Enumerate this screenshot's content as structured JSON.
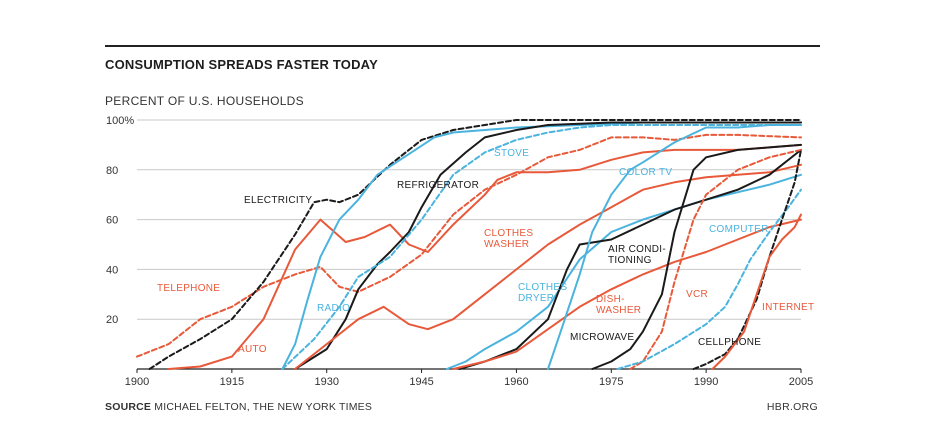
{
  "header": {
    "title": "CONSUMPTION SPREADS FASTER TODAY",
    "subtitle": "PERCENT OF U.S. HOUSEHOLDS"
  },
  "footer": {
    "source_label": "SOURCE",
    "source_text": "MICHAEL FELTON, THE NEW YORK TIMES",
    "credit": "HBR.ORG"
  },
  "colors": {
    "orange": "#e8593a",
    "blue": "#4ab3de",
    "black": "#1a1a1a"
  },
  "chart_data": {
    "type": "line",
    "title": "CONSUMPTION SPREADS FASTER TODAY",
    "ylabel": "PERCENT OF U.S. HOUSEHOLDS",
    "xlabel": "",
    "xlim": [
      1900,
      2005
    ],
    "ylim": [
      0,
      100
    ],
    "x_ticks": [
      1900,
      1915,
      1930,
      1945,
      1960,
      1975,
      1990,
      2005
    ],
    "y_ticks": [
      20,
      40,
      60,
      80,
      100
    ],
    "y_tick_labels": [
      "20",
      "40",
      "60",
      "80",
      "100%"
    ],
    "series": [
      {
        "name": "TELEPHONE",
        "label": "TELEPHONE",
        "color": "orange",
        "dashed": true,
        "points": [
          [
            1900,
            5
          ],
          [
            1905,
            10
          ],
          [
            1910,
            20
          ],
          [
            1915,
            25
          ],
          [
            1920,
            33
          ],
          [
            1925,
            38
          ],
          [
            1929,
            41
          ],
          [
            1932,
            33
          ],
          [
            1935,
            31
          ],
          [
            1940,
            37
          ],
          [
            1945,
            46
          ],
          [
            1950,
            62
          ],
          [
            1955,
            72
          ],
          [
            1960,
            78
          ],
          [
            1965,
            85
          ],
          [
            1970,
            88
          ],
          [
            1975,
            93
          ],
          [
            1980,
            93
          ],
          [
            1985,
            92
          ],
          [
            1990,
            94
          ],
          [
            1995,
            94
          ],
          [
            2005,
            93
          ]
        ]
      },
      {
        "name": "ELECTRICITY",
        "label": "ELECTRICITY",
        "color": "black",
        "dashed": true,
        "points": [
          [
            1902,
            0
          ],
          [
            1905,
            5
          ],
          [
            1910,
            12
          ],
          [
            1915,
            20
          ],
          [
            1920,
            35
          ],
          [
            1925,
            54
          ],
          [
            1928,
            67
          ],
          [
            1930,
            68
          ],
          [
            1932,
            67
          ],
          [
            1935,
            70
          ],
          [
            1940,
            82
          ],
          [
            1945,
            92
          ],
          [
            1950,
            96
          ],
          [
            1955,
            98
          ],
          [
            1960,
            100
          ],
          [
            2005,
            100
          ]
        ]
      },
      {
        "name": "AUTO",
        "label": "AUTO",
        "color": "orange",
        "dashed": false,
        "points": [
          [
            1905,
            0
          ],
          [
            1910,
            1
          ],
          [
            1915,
            5
          ],
          [
            1920,
            20
          ],
          [
            1925,
            48
          ],
          [
            1929,
            60
          ],
          [
            1933,
            51
          ],
          [
            1936,
            53
          ],
          [
            1940,
            58
          ],
          [
            1943,
            50
          ],
          [
            1946,
            47
          ],
          [
            1950,
            58
          ],
          [
            1955,
            70
          ],
          [
            1957,
            76
          ],
          [
            1960,
            79
          ],
          [
            1965,
            79
          ],
          [
            1970,
            80
          ],
          [
            1975,
            84
          ],
          [
            1980,
            87
          ],
          [
            1985,
            88
          ],
          [
            1990,
            88
          ],
          [
            1995,
            88
          ],
          [
            2000,
            89
          ],
          [
            2005,
            90
          ]
        ]
      },
      {
        "name": "RADIO",
        "label": "RADIO",
        "color": "blue",
        "dashed": false,
        "points": [
          [
            1923,
            0
          ],
          [
            1925,
            10
          ],
          [
            1927,
            28
          ],
          [
            1929,
            45
          ],
          [
            1932,
            60
          ],
          [
            1935,
            68
          ],
          [
            1938,
            78
          ],
          [
            1941,
            83
          ],
          [
            1944,
            88
          ],
          [
            1947,
            93
          ],
          [
            1950,
            95
          ],
          [
            1955,
            96
          ],
          [
            1960,
            97
          ],
          [
            1970,
            98
          ],
          [
            1980,
            99
          ],
          [
            2005,
            99
          ]
        ]
      },
      {
        "name": "REFRIGERATOR",
        "label": "REFRIGERATOR",
        "color": "black",
        "dashed": false,
        "points": [
          [
            1925,
            0
          ],
          [
            1930,
            8
          ],
          [
            1933,
            20
          ],
          [
            1935,
            32
          ],
          [
            1938,
            42
          ],
          [
            1940,
            47
          ],
          [
            1943,
            55
          ],
          [
            1945,
            65
          ],
          [
            1948,
            78
          ],
          [
            1952,
            87
          ],
          [
            1955,
            93
          ],
          [
            1960,
            96
          ],
          [
            1965,
            98
          ],
          [
            1975,
            99
          ],
          [
            2005,
            99
          ]
        ]
      },
      {
        "name": "STOVE",
        "label": "STOVE",
        "color": "blue",
        "dashed": true,
        "points": [
          [
            1923,
            0
          ],
          [
            1928,
            12
          ],
          [
            1932,
            25
          ],
          [
            1935,
            37
          ],
          [
            1940,
            45
          ],
          [
            1945,
            60
          ],
          [
            1950,
            78
          ],
          [
            1955,
            87
          ],
          [
            1960,
            92
          ],
          [
            1965,
            95
          ],
          [
            1970,
            97
          ],
          [
            1975,
            98
          ],
          [
            2005,
            98
          ]
        ]
      },
      {
        "name": "CLOTHES WASHER",
        "label": "CLOTHES\nWASHER",
        "color": "orange",
        "dashed": false,
        "points": [
          [
            1925,
            0
          ],
          [
            1930,
            10
          ],
          [
            1935,
            20
          ],
          [
            1939,
            25
          ],
          [
            1943,
            18
          ],
          [
            1946,
            16
          ],
          [
            1950,
            20
          ],
          [
            1955,
            30
          ],
          [
            1960,
            40
          ],
          [
            1965,
            50
          ],
          [
            1970,
            58
          ],
          [
            1975,
            65
          ],
          [
            1980,
            72
          ],
          [
            1985,
            75
          ],
          [
            1990,
            77
          ],
          [
            1995,
            78
          ],
          [
            2000,
            79
          ],
          [
            2005,
            82
          ]
        ]
      },
      {
        "name": "CLOTHES DRYER",
        "label": "CLOTHES\nDRYER",
        "color": "blue",
        "dashed": false,
        "points": [
          [
            1949,
            0
          ],
          [
            1952,
            3
          ],
          [
            1955,
            8
          ],
          [
            1960,
            15
          ],
          [
            1965,
            25
          ],
          [
            1970,
            44
          ],
          [
            1975,
            55
          ],
          [
            1980,
            60
          ],
          [
            1985,
            64
          ],
          [
            1990,
            68
          ],
          [
            1995,
            71
          ],
          [
            2000,
            74
          ],
          [
            2005,
            78
          ]
        ]
      },
      {
        "name": "AIR CONDITIONING",
        "label": "AIR CONDI-\nTIONING",
        "color": "black",
        "dashed": false,
        "points": [
          [
            1951,
            0
          ],
          [
            1955,
            3
          ],
          [
            1960,
            8
          ],
          [
            1965,
            20
          ],
          [
            1968,
            40
          ],
          [
            1970,
            50
          ],
          [
            1975,
            52
          ],
          [
            1980,
            58
          ],
          [
            1985,
            64
          ],
          [
            1990,
            68
          ],
          [
            1995,
            72
          ],
          [
            2000,
            78
          ],
          [
            2005,
            88
          ]
        ]
      },
      {
        "name": "DISH-WASHER",
        "label": "DISH-\nWASHER",
        "color": "orange",
        "dashed": false,
        "points": [
          [
            1950,
            0
          ],
          [
            1955,
            3
          ],
          [
            1960,
            7
          ],
          [
            1965,
            16
          ],
          [
            1970,
            25
          ],
          [
            1975,
            32
          ],
          [
            1980,
            38
          ],
          [
            1985,
            43
          ],
          [
            1990,
            47
          ],
          [
            1995,
            52
          ],
          [
            2000,
            57
          ],
          [
            2005,
            60
          ]
        ]
      },
      {
        "name": "COLOR TV",
        "label": "COLOR TV",
        "color": "blue",
        "dashed": false,
        "points": [
          [
            1965,
            0
          ],
          [
            1967,
            15
          ],
          [
            1970,
            38
          ],
          [
            1972,
            55
          ],
          [
            1975,
            70
          ],
          [
            1978,
            80
          ],
          [
            1980,
            83
          ],
          [
            1985,
            91
          ],
          [
            1990,
            97
          ],
          [
            1995,
            97
          ],
          [
            2000,
            98
          ],
          [
            2005,
            98
          ]
        ]
      },
      {
        "name": "MICROWAVE",
        "label": "MICROWAVE",
        "color": "black",
        "dashed": false,
        "points": [
          [
            1972,
            0
          ],
          [
            1975,
            3
          ],
          [
            1978,
            8
          ],
          [
            1980,
            15
          ],
          [
            1983,
            30
          ],
          [
            1985,
            55
          ],
          [
            1988,
            80
          ],
          [
            1990,
            85
          ],
          [
            1995,
            88
          ],
          [
            2000,
            89
          ],
          [
            2005,
            90
          ]
        ]
      },
      {
        "name": "VCR",
        "label": "VCR",
        "color": "orange",
        "dashed": true,
        "points": [
          [
            1978,
            0
          ],
          [
            1980,
            3
          ],
          [
            1983,
            15
          ],
          [
            1985,
            35
          ],
          [
            1988,
            60
          ],
          [
            1990,
            70
          ],
          [
            1995,
            80
          ],
          [
            2000,
            85
          ],
          [
            2005,
            88
          ]
        ]
      },
      {
        "name": "COMPUTER",
        "label": "COMPUTER",
        "color": "blue",
        "dashed": true,
        "points": [
          [
            1976,
            0
          ],
          [
            1980,
            3
          ],
          [
            1985,
            10
          ],
          [
            1990,
            18
          ],
          [
            1993,
            25
          ],
          [
            1995,
            34
          ],
          [
            1997,
            44
          ],
          [
            2000,
            55
          ],
          [
            2003,
            65
          ],
          [
            2005,
            72
          ]
        ]
      },
      {
        "name": "CELLPHONE",
        "label": "CELLPHONE",
        "color": "black",
        "dashed": true,
        "points": [
          [
            1988,
            0
          ],
          [
            1990,
            2
          ],
          [
            1993,
            6
          ],
          [
            1995,
            12
          ],
          [
            1998,
            28
          ],
          [
            2000,
            45
          ],
          [
            2002,
            60
          ],
          [
            2004,
            75
          ],
          [
            2005,
            88
          ]
        ]
      },
      {
        "name": "INTERNET",
        "label": "INTERNET",
        "color": "orange",
        "dashed": false,
        "points": [
          [
            1991,
            0
          ],
          [
            1993,
            5
          ],
          [
            1996,
            15
          ],
          [
            1998,
            30
          ],
          [
            2000,
            45
          ],
          [
            2002,
            52
          ],
          [
            2004,
            57
          ],
          [
            2005,
            62
          ]
        ]
      }
    ]
  }
}
